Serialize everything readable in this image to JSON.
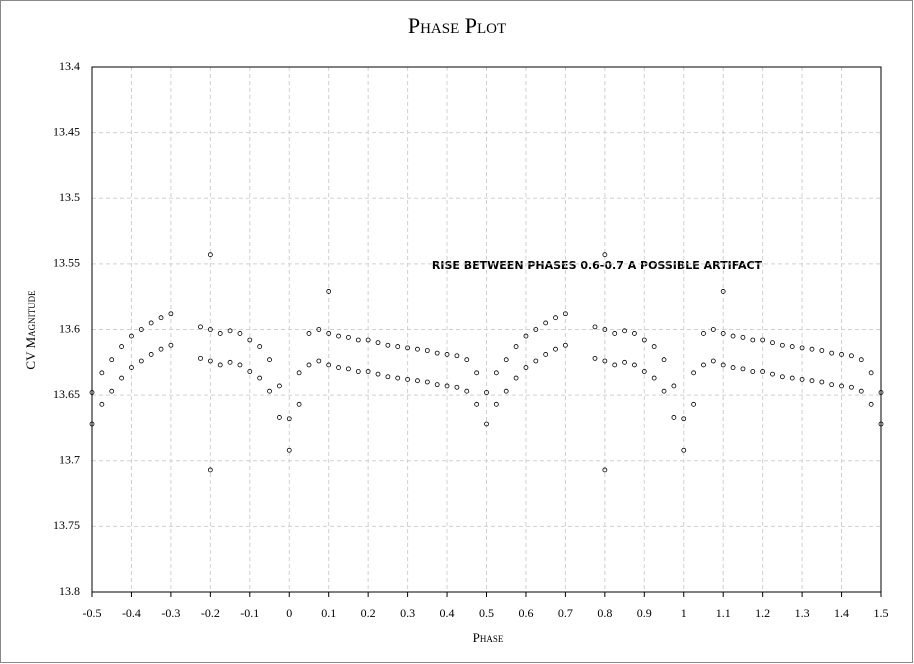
{
  "chart_data": {
    "type": "scatter",
    "title": "Phase Plot",
    "x_label": "Phase",
    "y_label": "CV Magnitude",
    "annotation": "RISE BETWEEN PHASES 0.6-0.7   A POSSIBLE ARTIFACT",
    "xlim": [
      -0.5,
      1.5
    ],
    "xticks": [
      -0.5,
      -0.4,
      -0.3,
      -0.2,
      -0.1,
      0,
      0.1,
      0.2,
      0.3,
      0.4,
      0.5,
      0.6,
      0.7,
      0.8,
      0.9,
      1,
      1.1,
      1.2,
      1.3,
      1.4,
      1.5
    ],
    "ylim": [
      13.8,
      13.4
    ],
    "yticks": [
      13.4,
      13.45,
      13.5,
      13.55,
      13.6,
      13.65,
      13.7,
      13.75,
      13.8
    ],
    "grid": true,
    "color": "#000000",
    "x": [
      -0.5,
      -0.5,
      -0.475,
      -0.475,
      -0.45,
      -0.45,
      -0.425,
      -0.425,
      -0.4,
      -0.4,
      -0.375,
      -0.375,
      -0.35,
      -0.35,
      -0.325,
      -0.325,
      -0.3,
      -0.3,
      -0.225,
      -0.225,
      -0.2,
      -0.2,
      -0.175,
      -0.175,
      -0.15,
      -0.15,
      -0.125,
      -0.125,
      -0.1,
      -0.1,
      -0.075,
      -0.075,
      -0.05,
      -0.05,
      -0.025,
      -0.025,
      0,
      0,
      0.025,
      0.025,
      0.05,
      0.05,
      0.075,
      0.075,
      0.1,
      0.1,
      0.125,
      0.125,
      0.15,
      0.15,
      0.175,
      0.175,
      0.2,
      0.2,
      0.225,
      0.225,
      0.25,
      0.25,
      0.275,
      0.275,
      0.3,
      0.3,
      0.325,
      0.325,
      0.35,
      0.35,
      0.375,
      0.375,
      0.4,
      0.4,
      0.425,
      0.425,
      0.45,
      0.45,
      0.475,
      0.475,
      0.5,
      0.5,
      0.525,
      0.525,
      0.55,
      0.55,
      0.575,
      0.575,
      0.6,
      0.6,
      0.625,
      0.625,
      0.65,
      0.65,
      0.675,
      0.675,
      0.7,
      0.7,
      0.775,
      0.775,
      0.8,
      0.8,
      0.825,
      0.825,
      0.85,
      0.85,
      0.875,
      0.875,
      0.9,
      0.9,
      0.925,
      0.925,
      0.95,
      0.95,
      0.975,
      0.975,
      1,
      1,
      1.025,
      1.025,
      1.05,
      1.05,
      1.075,
      1.075,
      1.1,
      1.1,
      1.125,
      1.125,
      1.15,
      1.15,
      1.175,
      1.175,
      1.2,
      1.2,
      1.225,
      1.225,
      1.25,
      1.25,
      1.275,
      1.275,
      1.3,
      1.3,
      1.325,
      1.325,
      1.35,
      1.35,
      1.375,
      1.375,
      1.4,
      1.4,
      1.425,
      1.425,
      1.45,
      1.45,
      1.475,
      1.475,
      1.5,
      1.5,
      -0.2,
      -0.2,
      0.8,
      0.8,
      0.1,
      1.1
    ],
    "values": [
      13.648,
      13.672,
      13.633,
      13.657,
      13.623,
      13.647,
      13.613,
      13.637,
      13.605,
      13.629,
      13.6,
      13.624,
      13.595,
      13.619,
      13.591,
      13.615,
      13.588,
      13.612,
      13.598,
      13.622,
      13.6,
      13.624,
      13.603,
      13.627,
      13.601,
      13.625,
      13.603,
      13.627,
      13.608,
      13.632,
      13.613,
      13.637,
      13.623,
      13.647,
      13.643,
      13.667,
      13.668,
      13.692,
      13.633,
      13.657,
      13.603,
      13.627,
      13.6,
      13.624,
      13.603,
      13.627,
      13.605,
      13.629,
      13.606,
      13.63,
      13.608,
      13.632,
      13.608,
      13.632,
      13.61,
      13.634,
      13.612,
      13.636,
      13.613,
      13.637,
      13.614,
      13.638,
      13.615,
      13.639,
      13.616,
      13.64,
      13.618,
      13.642,
      13.619,
      13.643,
      13.62,
      13.644,
      13.623,
      13.647,
      13.633,
      13.657,
      13.648,
      13.672,
      13.633,
      13.657,
      13.623,
      13.647,
      13.613,
      13.637,
      13.605,
      13.629,
      13.6,
      13.624,
      13.595,
      13.619,
      13.591,
      13.615,
      13.588,
      13.612,
      13.598,
      13.622,
      13.6,
      13.624,
      13.603,
      13.627,
      13.601,
      13.625,
      13.603,
      13.627,
      13.608,
      13.632,
      13.613,
      13.637,
      13.623,
      13.647,
      13.643,
      13.667,
      13.668,
      13.692,
      13.633,
      13.657,
      13.603,
      13.627,
      13.6,
      13.624,
      13.603,
      13.627,
      13.605,
      13.629,
      13.606,
      13.63,
      13.608,
      13.632,
      13.608,
      13.632,
      13.61,
      13.634,
      13.612,
      13.636,
      13.613,
      13.637,
      13.614,
      13.638,
      13.615,
      13.639,
      13.616,
      13.64,
      13.618,
      13.642,
      13.619,
      13.643,
      13.62,
      13.644,
      13.623,
      13.647,
      13.633,
      13.657,
      13.648,
      13.672,
      13.543,
      13.707,
      13.543,
      13.707,
      13.571,
      13.571
    ]
  }
}
